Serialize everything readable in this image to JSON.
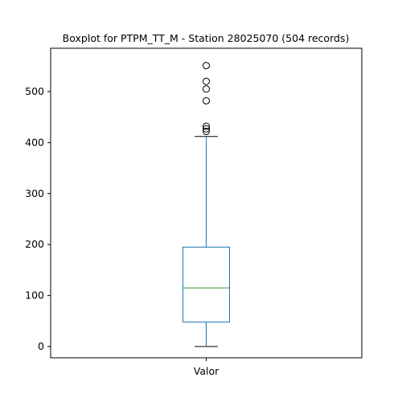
{
  "chart_data": {
    "type": "boxplot",
    "title": "Boxplot for PTPM_TT_M - Station 28025070 (504 records)",
    "xlabel": "",
    "ylabel": "",
    "categories": [
      "Valor"
    ],
    "ylim": [
      -22,
      585
    ],
    "yticks": [
      0,
      100,
      200,
      300,
      400,
      500
    ],
    "grid": false,
    "box": {
      "category": "Valor",
      "whisker_low": 0,
      "q1": 48,
      "median": 115,
      "q3": 195,
      "whisker_high": 412,
      "outliers": [
        422,
        427,
        432,
        482,
        505,
        520,
        551
      ]
    },
    "colors": {
      "box": "#1f77b4",
      "median": "#2ca02c",
      "outlier_edge": "#000000"
    }
  }
}
